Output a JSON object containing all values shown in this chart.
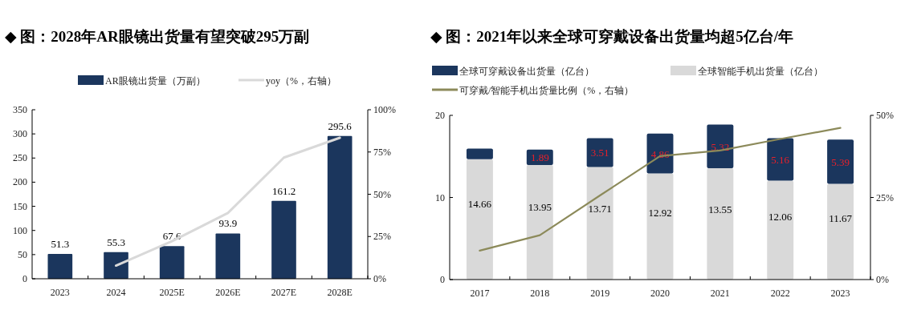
{
  "chart_data": [
    {
      "type": "bar",
      "title": "◆ 图：2028年AR眼镜出货量有望突破295万副",
      "categories": [
        "2023",
        "2024",
        "2025E",
        "2026E",
        "2027E",
        "2028E"
      ],
      "series": [
        {
          "name": "AR眼镜出货量（万副）",
          "color": "#1b365d",
          "values": [
            51.3,
            55.3,
            67.6,
            93.9,
            161.2,
            295.6
          ],
          "value_labels": [
            "51.3",
            "55.3",
            "67.6",
            "93.9",
            "161.2",
            "295.6"
          ]
        },
        {
          "name": "yoy（%，右轴）",
          "type": "line",
          "axis": "y2",
          "color": "#d9d9d9",
          "values": [
            null,
            7.8,
            22.2,
            38.9,
            71.7,
            83.4
          ]
        }
      ],
      "ylim": [
        0,
        350
      ],
      "yticks": [
        0,
        50,
        100,
        150,
        200,
        250,
        300,
        350
      ],
      "y2lim": [
        0,
        100
      ],
      "y2ticks": [
        {
          "value": 0,
          "label": "0%"
        },
        {
          "value": 25,
          "label": "25%"
        },
        {
          "value": 50,
          "label": "50%"
        },
        {
          "value": 75,
          "label": "75%"
        },
        {
          "value": 100,
          "label": "100%"
        }
      ],
      "legend": "top",
      "grid": false
    },
    {
      "type": "bar",
      "stacked": true,
      "title": "◆ 图：2021年以来全球可穿戴设备出货量均超5亿台/年",
      "categories": [
        "2017",
        "2018",
        "2019",
        "2020",
        "2021",
        "2022",
        "2023"
      ],
      "series": [
        {
          "name": "全球智能手机出货量（亿台）",
          "color": "#d9d9d9",
          "values": [
            14.66,
            13.95,
            13.71,
            12.92,
            13.55,
            12.06,
            11.67
          ],
          "value_labels": [
            "14.66",
            "13.95",
            "13.71",
            "12.92",
            "13.55",
            "12.06",
            "11.67"
          ]
        },
        {
          "name": "全球可穿戴设备出货量（亿台）",
          "color": "#1b365d",
          "values": [
            1.3,
            1.89,
            3.51,
            4.86,
            5.32,
            5.16,
            5.39
          ],
          "value_labels": [
            null,
            "1.89",
            "3.51",
            "4.86",
            "5.32",
            "5.16",
            "5.39"
          ]
        },
        {
          "name": "可穿戴/智能手机出货量比例（%，右轴）",
          "type": "line",
          "axis": "y2",
          "color": "#8c8a5a",
          "values": [
            8.8,
            13.5,
            25.6,
            37.6,
            39.3,
            42.8,
            46.2
          ]
        }
      ],
      "ylim": [
        0,
        20
      ],
      "yticks": [
        0,
        10,
        20
      ],
      "y2lim": [
        0,
        50
      ],
      "y2ticks": [
        {
          "value": 0,
          "label": "0%"
        },
        {
          "value": 25,
          "label": "25%"
        },
        {
          "value": 50,
          "label": "50%"
        }
      ],
      "legend": "top",
      "grid": false
    }
  ]
}
